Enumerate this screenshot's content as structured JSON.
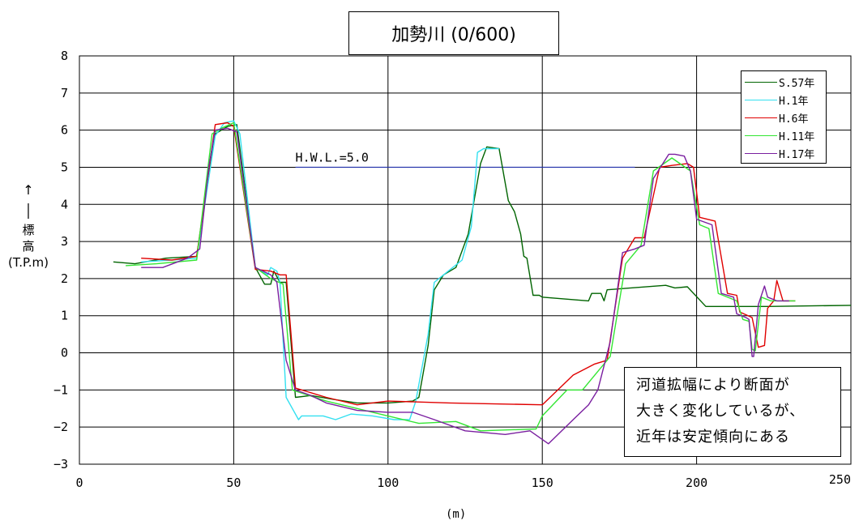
{
  "chart_data": {
    "type": "line",
    "title": "加勢川 (0/600)",
    "xlabel": "(m)",
    "ylabel": "標高",
    "ylabel_unit": "(T.P.m)",
    "xlim": [
      0,
      250
    ],
    "ylim": [
      -3,
      8
    ],
    "x_ticks": [
      "0",
      "50",
      "100",
      "150",
      "200",
      "250"
    ],
    "y_ticks": [
      "−3",
      "−2",
      "−1",
      "0",
      "1",
      "2",
      "3",
      "4",
      "5",
      "6",
      "7",
      "8"
    ],
    "grid": true,
    "legend_position": "top-right",
    "hwl": {
      "label": "H.W.L.=5.0",
      "y": 5.0,
      "x_start": 70,
      "x_end": 180,
      "color": "#1f2fa8"
    },
    "annotation": [
      "河道拡幅により断面が",
      "大きく変化しているが、",
      "近年は安定傾向にある"
    ],
    "series": [
      {
        "name": "S.57年",
        "color": "#006400",
        "points": [
          [
            11,
            2.45
          ],
          [
            18,
            2.4
          ],
          [
            28,
            2.55
          ],
          [
            38,
            2.6
          ],
          [
            44,
            5.9
          ],
          [
            48,
            6.1
          ],
          [
            51,
            6.15
          ],
          [
            57,
            2.3
          ],
          [
            60,
            1.85
          ],
          [
            62,
            1.85
          ],
          [
            63,
            2.2
          ],
          [
            65,
            1.9
          ],
          [
            67,
            1.9
          ],
          [
            70,
            -1.2
          ],
          [
            75,
            -1.15
          ],
          [
            82,
            -1.25
          ],
          [
            90,
            -1.35
          ],
          [
            100,
            -1.35
          ],
          [
            108,
            -1.3
          ],
          [
            110,
            -1.2
          ],
          [
            113,
            0.2
          ],
          [
            115,
            1.7
          ],
          [
            118,
            2.1
          ],
          [
            122,
            2.3
          ],
          [
            126,
            3.2
          ],
          [
            130,
            5.1
          ],
          [
            132,
            5.55
          ],
          [
            136,
            5.5
          ],
          [
            139,
            4.1
          ],
          [
            141,
            3.8
          ],
          [
            143,
            3.2
          ],
          [
            144,
            2.6
          ],
          [
            145,
            2.55
          ],
          [
            147,
            1.55
          ],
          [
            149,
            1.55
          ],
          [
            150,
            1.5
          ],
          [
            165,
            1.4
          ],
          [
            166,
            1.6
          ],
          [
            169,
            1.6
          ],
          [
            170,
            1.4
          ],
          [
            171,
            1.7
          ],
          [
            190,
            1.82
          ],
          [
            193,
            1.75
          ],
          [
            197,
            1.78
          ],
          [
            203,
            1.25
          ],
          [
            223,
            1.25
          ],
          [
            250,
            1.28
          ]
        ]
      },
      {
        "name": "H.1年",
        "color": "#33e0f0",
        "points": [
          [
            20,
            2.45
          ],
          [
            30,
            2.5
          ],
          [
            38,
            2.55
          ],
          [
            44,
            5.85
          ],
          [
            47,
            6.2
          ],
          [
            50,
            6.25
          ],
          [
            52,
            5.9
          ],
          [
            57,
            2.3
          ],
          [
            61,
            2.1
          ],
          [
            62,
            2.3
          ],
          [
            64,
            2.2
          ],
          [
            65,
            1.9
          ],
          [
            67,
            -1.2
          ],
          [
            71,
            -1.8
          ],
          [
            72,
            -1.7
          ],
          [
            76,
            -1.7
          ],
          [
            79,
            -1.7
          ],
          [
            83,
            -1.8
          ],
          [
            88,
            -1.65
          ],
          [
            95,
            -1.7
          ],
          [
            102,
            -1.8
          ],
          [
            107,
            -1.8
          ],
          [
            109,
            -1.3
          ],
          [
            113,
            0.5
          ],
          [
            115,
            1.9
          ],
          [
            118,
            2.1
          ],
          [
            124,
            2.5
          ],
          [
            127,
            3.4
          ],
          [
            129,
            5.4
          ],
          [
            131,
            5.5
          ],
          [
            134,
            5.5
          ],
          [
            136,
            5.5
          ]
        ]
      },
      {
        "name": "H.6年",
        "color": "#e00000",
        "points": [
          [
            20,
            2.55
          ],
          [
            30,
            2.5
          ],
          [
            38,
            2.6
          ],
          [
            44,
            6.15
          ],
          [
            48,
            6.2
          ],
          [
            50,
            6.1
          ],
          [
            57,
            2.25
          ],
          [
            62,
            2.2
          ],
          [
            65,
            2.1
          ],
          [
            67,
            2.1
          ],
          [
            70,
            -0.95
          ],
          [
            80,
            -1.2
          ],
          [
            90,
            -1.4
          ],
          [
            100,
            -1.3
          ],
          [
            120,
            -1.35
          ],
          [
            150,
            -1.4
          ],
          [
            160,
            -0.6
          ],
          [
            167,
            -0.3
          ],
          [
            171,
            -0.2
          ],
          [
            176,
            2.55
          ],
          [
            180,
            3.1
          ],
          [
            183,
            3.1
          ],
          [
            188,
            5.0
          ],
          [
            192,
            5.05
          ],
          [
            197,
            5.1
          ],
          [
            199,
            5.0
          ],
          [
            201,
            3.65
          ],
          [
            206,
            3.55
          ],
          [
            210,
            1.6
          ],
          [
            213,
            1.55
          ],
          [
            214,
            1.1
          ],
          [
            218,
            0.95
          ],
          [
            220,
            0.15
          ],
          [
            222,
            0.2
          ],
          [
            223,
            1.2
          ],
          [
            225,
            1.4
          ],
          [
            226,
            1.95
          ],
          [
            228,
            1.4
          ],
          [
            232,
            1.4
          ]
        ]
      },
      {
        "name": "H.11年",
        "color": "#33e633",
        "points": [
          [
            15,
            2.35
          ],
          [
            25,
            2.4
          ],
          [
            38,
            2.5
          ],
          [
            43,
            5.9
          ],
          [
            46,
            6.05
          ],
          [
            50,
            6.2
          ],
          [
            57,
            2.3
          ],
          [
            62,
            2.0
          ],
          [
            66,
            1.85
          ],
          [
            69,
            -1.0
          ],
          [
            80,
            -1.3
          ],
          [
            95,
            -1.6
          ],
          [
            110,
            -1.9
          ],
          [
            122,
            -1.85
          ],
          [
            130,
            -2.1
          ],
          [
            148,
            -2.05
          ],
          [
            150,
            -1.7
          ],
          [
            158,
            -1.0
          ],
          [
            163,
            -1.0
          ],
          [
            172,
            -0.1
          ],
          [
            177,
            2.4
          ],
          [
            182,
            2.9
          ],
          [
            186,
            4.9
          ],
          [
            192,
            5.25
          ],
          [
            198,
            4.9
          ],
          [
            201,
            3.45
          ],
          [
            204,
            3.35
          ],
          [
            207,
            1.6
          ],
          [
            213,
            1.4
          ],
          [
            215,
            0.9
          ],
          [
            217,
            0.85
          ],
          [
            218,
            0.1
          ],
          [
            219,
            0.05
          ],
          [
            221,
            1.5
          ],
          [
            224,
            1.4
          ],
          [
            232,
            1.4
          ]
        ]
      },
      {
        "name": "H.17年",
        "color": "#7a1fa0",
        "points": [
          [
            20,
            2.3
          ],
          [
            27,
            2.3
          ],
          [
            35,
            2.55
          ],
          [
            39,
            2.8
          ],
          [
            42,
            5.05
          ],
          [
            44,
            6.0
          ],
          [
            48,
            6.05
          ],
          [
            51,
            5.95
          ],
          [
            57,
            2.3
          ],
          [
            62,
            2.1
          ],
          [
            64,
            1.9
          ],
          [
            67,
            -0.2
          ],
          [
            70,
            -1.0
          ],
          [
            75,
            -1.15
          ],
          [
            80,
            -1.35
          ],
          [
            90,
            -1.55
          ],
          [
            100,
            -1.6
          ],
          [
            108,
            -1.6
          ],
          [
            115,
            -1.8
          ],
          [
            125,
            -2.1
          ],
          [
            138,
            -2.2
          ],
          [
            146,
            -2.1
          ],
          [
            152,
            -2.45
          ],
          [
            160,
            -1.8
          ],
          [
            165,
            -1.4
          ],
          [
            168,
            -1.0
          ],
          [
            172,
            0.3
          ],
          [
            176,
            2.7
          ],
          [
            180,
            2.8
          ],
          [
            183,
            2.9
          ],
          [
            186,
            4.7
          ],
          [
            191,
            5.35
          ],
          [
            193,
            5.35
          ],
          [
            196,
            5.3
          ],
          [
            198,
            4.9
          ],
          [
            200,
            3.6
          ],
          [
            205,
            3.45
          ],
          [
            208,
            1.6
          ],
          [
            212,
            1.5
          ],
          [
            213,
            1.05
          ],
          [
            216,
            0.95
          ],
          [
            217,
            0.9
          ],
          [
            218,
            -0.1
          ],
          [
            218.5,
            -0.1
          ],
          [
            220,
            1.3
          ],
          [
            222,
            1.8
          ],
          [
            223,
            1.5
          ],
          [
            226,
            1.4
          ],
          [
            230,
            1.4
          ]
        ]
      }
    ]
  }
}
